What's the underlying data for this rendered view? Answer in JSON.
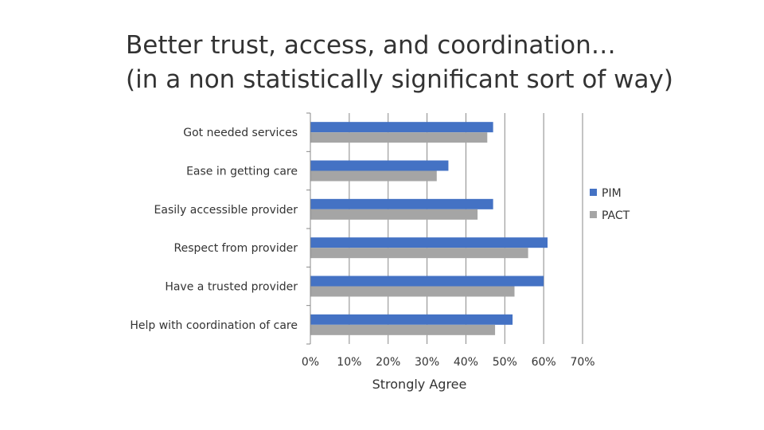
{
  "slide": {
    "title_line1": "Better trust, access, and coordination…",
    "title_line2": "(in a non statistically significant sort of way)"
  },
  "chart_data": {
    "type": "bar",
    "orientation": "horizontal",
    "title": "",
    "xlabel": "Strongly Agree",
    "ylabel": "",
    "xlim": [
      0,
      70
    ],
    "xticks": [
      "0%",
      "10%",
      "20%",
      "30%",
      "40%",
      "50%",
      "60%",
      "70%"
    ],
    "grid": true,
    "legend": "right",
    "categories": [
      "Got needed services",
      "Ease in getting care",
      "Easily accessible provider",
      "Respect from provider",
      "Have a trusted provider",
      "Help with coordination of care"
    ],
    "series": [
      {
        "name": "PIM",
        "color": "#4472c4",
        "values": [
          47,
          35.5,
          47,
          61,
          60,
          52
        ]
      },
      {
        "name": "PACT",
        "color": "#a5a5a5",
        "values": [
          45.5,
          32.5,
          43,
          56,
          52.5,
          47.5
        ]
      }
    ]
  }
}
